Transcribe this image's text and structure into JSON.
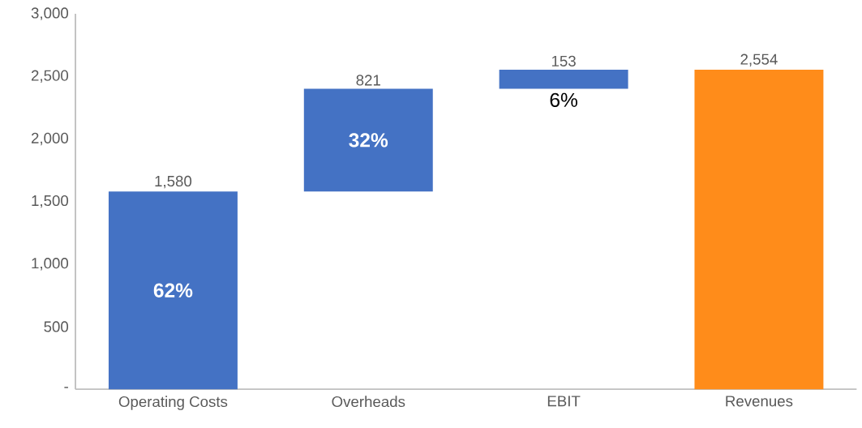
{
  "chart_data": {
    "type": "bar",
    "categories": [
      "Operating Costs",
      "Overheads",
      "EBIT",
      "Revenues"
    ],
    "values": [
      1580,
      821,
      153,
      2554
    ],
    "base": [
      0,
      1580,
      2401,
      0
    ],
    "colors": [
      "#4472c4",
      "#4472c4",
      "#4472c4",
      "#ff8c1a"
    ],
    "value_labels": [
      "1,580",
      "821",
      "153",
      "2,554"
    ],
    "ylim": [
      0,
      3000
    ],
    "yticks": [
      {
        "value": 0,
        "label": "-"
      },
      {
        "value": 500,
        "label": "500"
      },
      {
        "value": 1000,
        "label": "1,000"
      },
      {
        "value": 1500,
        "label": "1,500"
      },
      {
        "value": 2000,
        "label": "2,000"
      },
      {
        "value": 2500,
        "label": "2,500"
      },
      {
        "value": 3000,
        "label": "3,000"
      }
    ],
    "annotations": [
      "62%",
      "32%",
      "6%"
    ],
    "grid": false
  }
}
